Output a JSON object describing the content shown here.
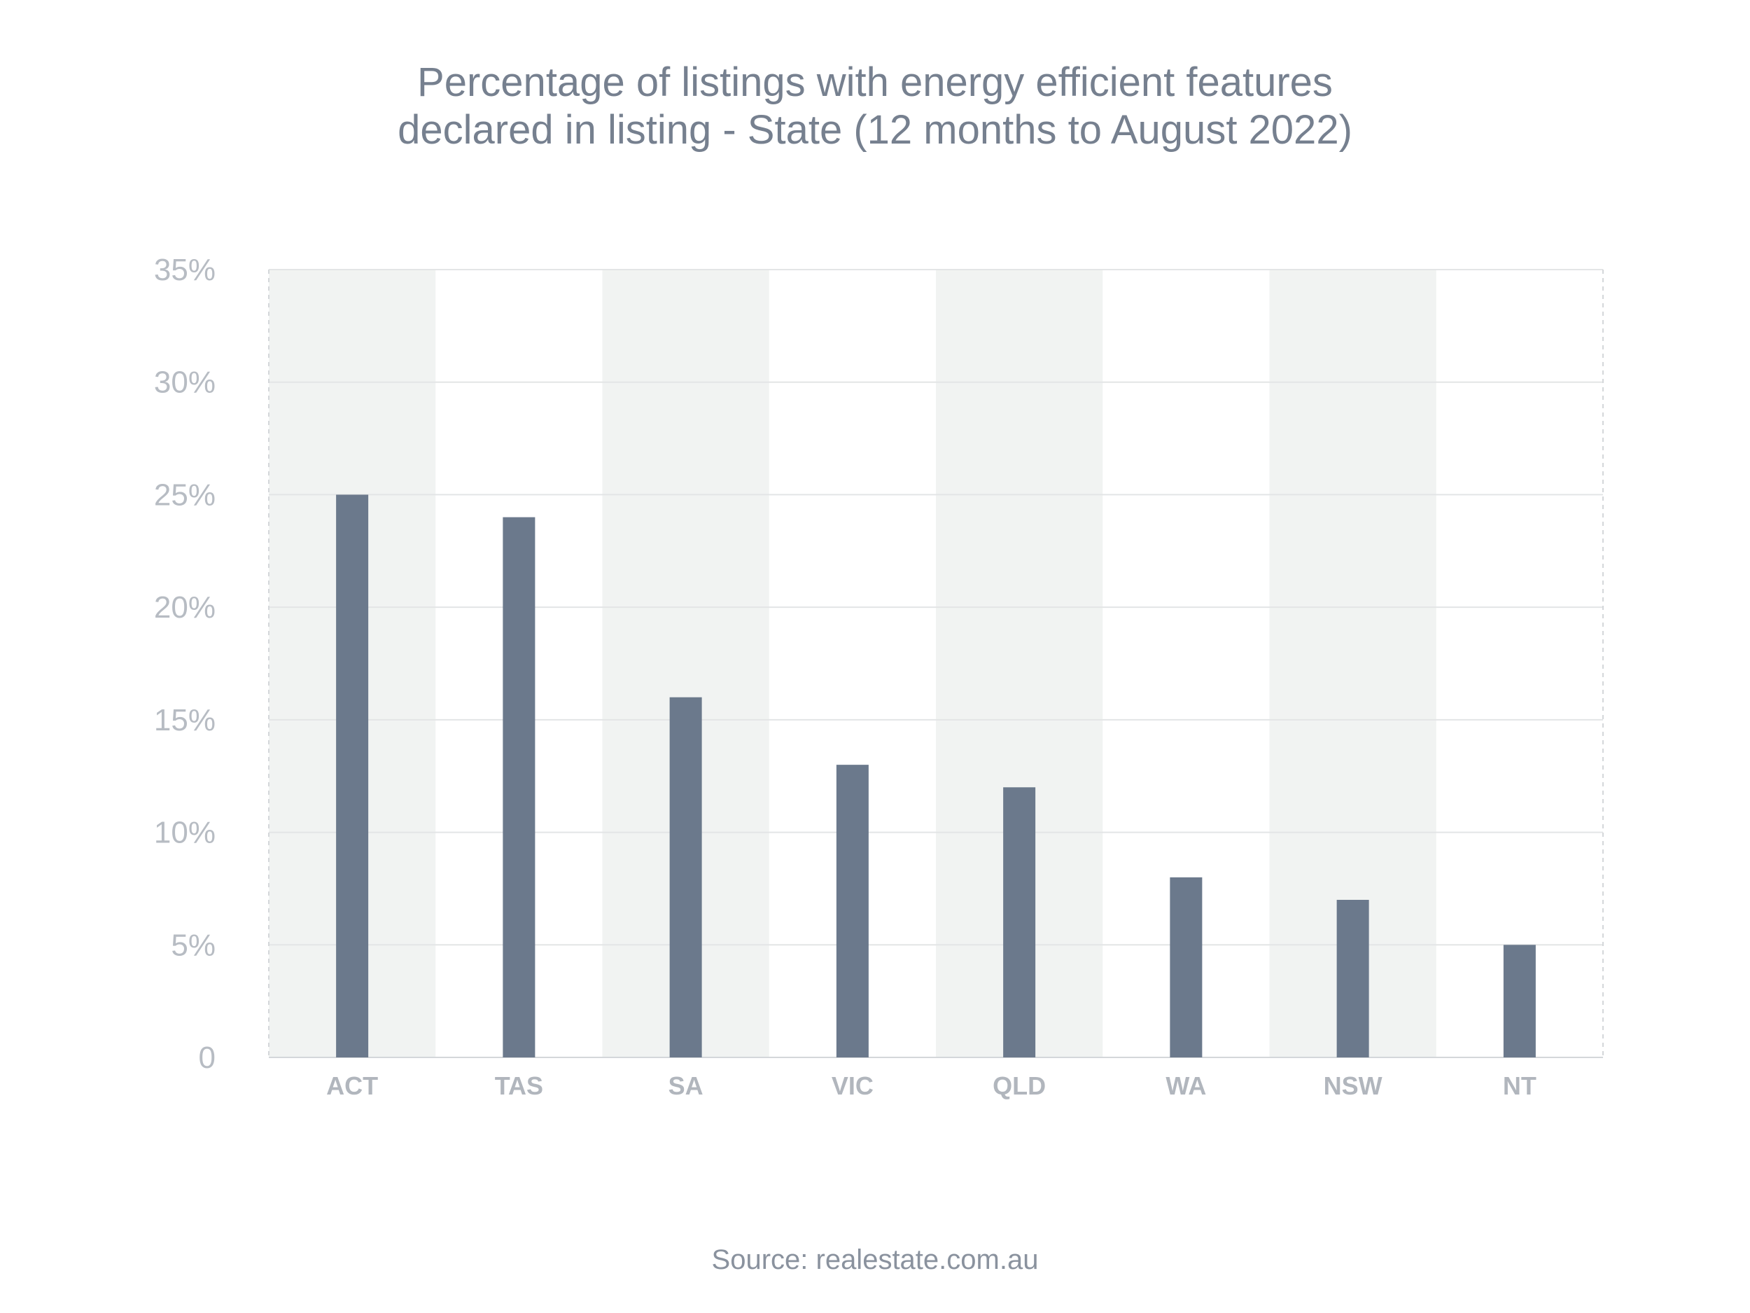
{
  "chart_data": {
    "type": "bar",
    "title": "Percentage of listings with energy efficient features\ndeclared in listing - State (12 months to August 2022)",
    "source": "Source: realestate.com.au",
    "categories": [
      "ACT",
      "TAS",
      "SA",
      "VIC",
      "QLD",
      "WA",
      "NSW",
      "NT"
    ],
    "values": [
      25,
      24,
      16,
      13,
      12,
      8,
      7,
      5
    ],
    "ylim": [
      0,
      35
    ],
    "yticks": [
      0,
      5,
      10,
      15,
      20,
      25,
      30,
      35
    ],
    "ytick_labels": [
      "0",
      "5%",
      "10%",
      "15%",
      "20%",
      "25%",
      "30%",
      "35%"
    ],
    "xlabel": "",
    "ylabel": "",
    "grid": true,
    "alternating_band_shading": true,
    "colors": {
      "bar": "#6b798c",
      "band": "#f1f3f2",
      "grid": "#e3e5e6",
      "title": "#76808f",
      "tick": "#b7bcc3",
      "source": "#8a929e"
    }
  }
}
